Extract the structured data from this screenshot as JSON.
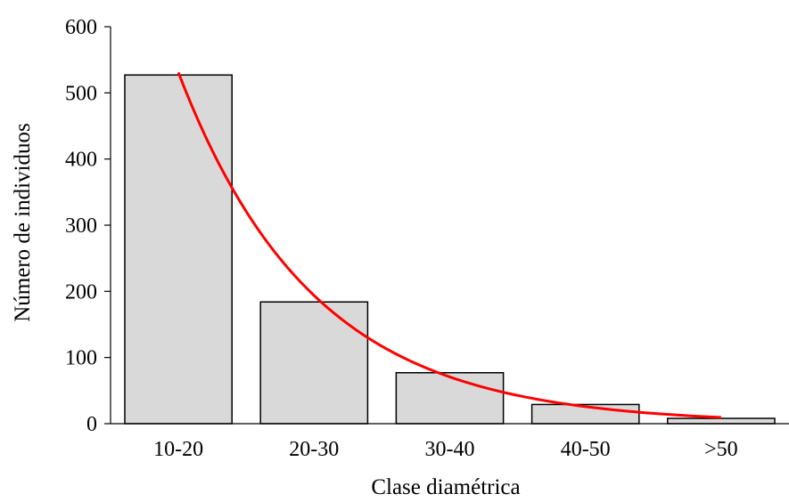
{
  "chart_data": {
    "type": "bar",
    "title": "",
    "xlabel": "Clase diamétrica",
    "ylabel": "Número de individuos",
    "categories": [
      "10-20",
      "20-30",
      "30-40",
      "40-50",
      ">50"
    ],
    "values": [
      527,
      184,
      77,
      29,
      8
    ],
    "ylim": [
      0,
      600
    ],
    "yticks": [
      0,
      100,
      200,
      300,
      400,
      500,
      600
    ],
    "grid": false,
    "legend": "none",
    "bar_color": "#d9d9d9",
    "bar_edge_color": "#000000",
    "trendline": {
      "type": "exponential",
      "color": "#ff0000",
      "x": [
        1,
        2,
        3,
        4,
        5
      ],
      "values": [
        543,
        184,
        70,
        28,
        9
      ]
    }
  }
}
